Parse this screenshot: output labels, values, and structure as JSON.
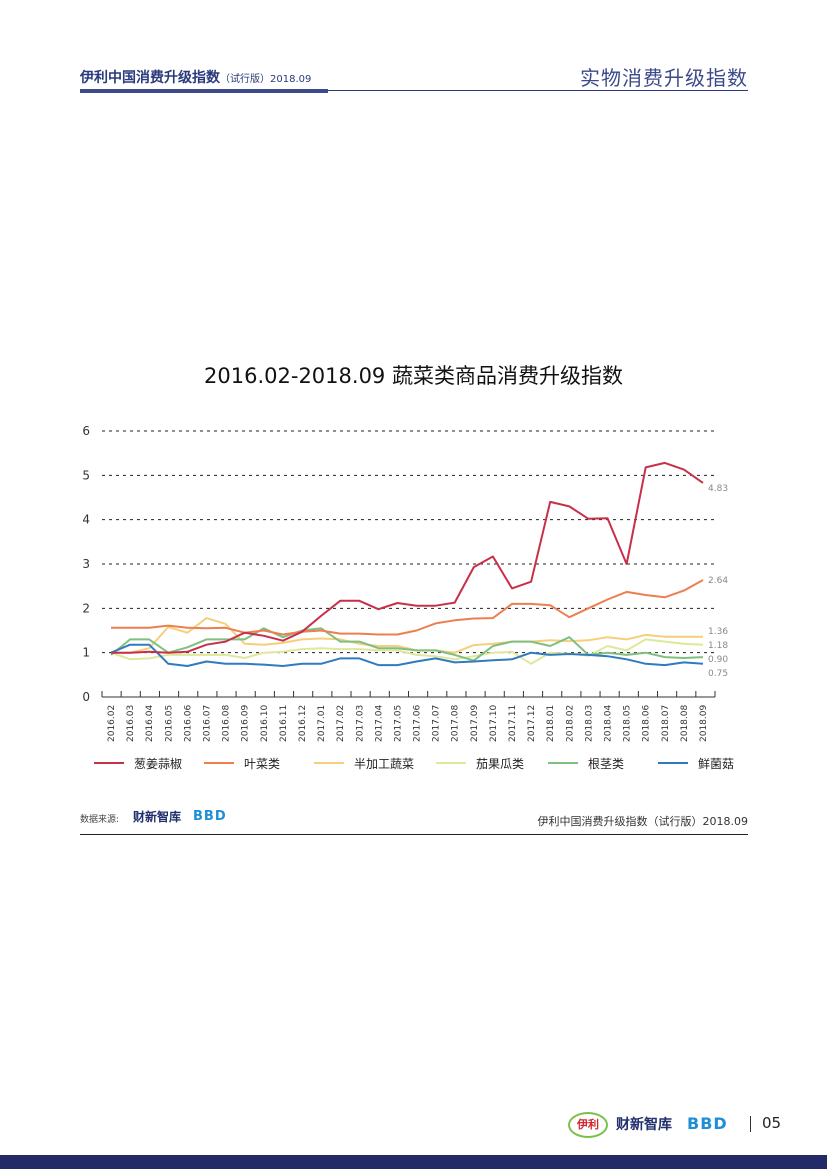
{
  "header": {
    "left_title": "伊利中国消费升级指数",
    "left_sub": "（试行版）2018.09",
    "right_title": "实物消费升级指数"
  },
  "chart_data": {
    "type": "line",
    "title": "2016.02-2018.09 蔬菜类商品消费升级指数",
    "xlabel": "",
    "ylabel": "",
    "ylim": [
      0,
      6
    ],
    "yticks": [
      "0",
      "1",
      "2",
      "3",
      "4",
      "5",
      "6"
    ],
    "grid": true,
    "legend_position": "bottom",
    "categories": [
      "2016.02",
      "2016.03",
      "2016.04",
      "2016.05",
      "2016.06",
      "2016.07",
      "2016.08",
      "2016.09",
      "2016.10",
      "2016.11",
      "2016.12",
      "2017.01",
      "2017.02",
      "2017.03",
      "2017.04",
      "2017.05",
      "2017.06",
      "2017.07",
      "2017.08",
      "2017.09",
      "2017.10",
      "2017.11",
      "2017.12",
      "2018.01",
      "2018.02",
      "2018.03",
      "2018.04",
      "2018.05",
      "2018.06",
      "2018.07",
      "2018.08",
      "2018.09"
    ],
    "series": [
      {
        "name": "葱姜蒜椒",
        "color": "#c8304a",
        "end_label": "4.83",
        "values": [
          1.0,
          1.0,
          1.02,
          1.0,
          1.02,
          1.18,
          1.25,
          1.45,
          1.38,
          1.27,
          1.47,
          1.83,
          2.17,
          2.17,
          1.98,
          2.12,
          2.06,
          2.06,
          2.13,
          2.93,
          3.17,
          2.45,
          2.6,
          4.4,
          4.3,
          4.02,
          4.03,
          3.0,
          5.18,
          5.28,
          5.13,
          4.83
        ]
      },
      {
        "name": "叶菜类",
        "color": "#ec7f4f",
        "end_label": "2.64",
        "values": [
          1.56,
          1.56,
          1.56,
          1.61,
          1.56,
          1.55,
          1.56,
          1.45,
          1.5,
          1.41,
          1.47,
          1.5,
          1.43,
          1.43,
          1.41,
          1.41,
          1.5,
          1.66,
          1.73,
          1.77,
          1.78,
          2.1,
          2.1,
          2.07,
          1.8,
          2.0,
          2.2,
          2.37,
          2.3,
          2.25,
          2.4,
          2.64
        ]
      },
      {
        "name": "半加工蔬菜",
        "color": "#f5cf7a",
        "end_label": "1.36",
        "values": [
          1.0,
          1.0,
          1.1,
          1.58,
          1.45,
          1.78,
          1.65,
          1.2,
          1.18,
          1.22,
          1.3,
          1.32,
          1.3,
          1.2,
          1.15,
          1.15,
          1.05,
          1.05,
          1.0,
          1.17,
          1.2,
          1.25,
          1.25,
          1.28,
          1.26,
          1.28,
          1.35,
          1.3,
          1.4,
          1.36,
          1.36,
          1.36
        ]
      },
      {
        "name": "茄果瓜类",
        "color": "#dfe89a",
        "end_label": "1.18",
        "values": [
          1.0,
          0.85,
          0.87,
          0.95,
          0.95,
          0.95,
          0.95,
          0.88,
          1.0,
          1.02,
          1.08,
          1.1,
          1.08,
          1.08,
          1.05,
          1.05,
          0.95,
          0.92,
          0.85,
          0.92,
          1.0,
          1.02,
          0.75,
          1.0,
          0.98,
          0.93,
          1.15,
          1.05,
          1.3,
          1.25,
          1.2,
          1.18
        ]
      },
      {
        "name": "根茎类",
        "color": "#7fbf7f",
        "end_label": "0.90",
        "values": [
          0.95,
          1.3,
          1.3,
          1.0,
          1.12,
          1.3,
          1.3,
          1.3,
          1.55,
          1.35,
          1.5,
          1.55,
          1.25,
          1.25,
          1.1,
          1.1,
          1.05,
          1.05,
          0.95,
          0.82,
          1.15,
          1.25,
          1.25,
          1.15,
          1.35,
          0.95,
          1.0,
          0.95,
          1.0,
          0.9,
          0.88,
          0.9
        ]
      },
      {
        "name": "鲜菌菇",
        "color": "#2f7bbd",
        "end_label": "0.75",
        "values": [
          1.0,
          1.18,
          1.18,
          0.75,
          0.7,
          0.8,
          0.75,
          0.75,
          0.73,
          0.7,
          0.75,
          0.75,
          0.87,
          0.87,
          0.72,
          0.72,
          0.8,
          0.87,
          0.78,
          0.8,
          0.83,
          0.85,
          1.0,
          0.95,
          0.97,
          0.95,
          0.92,
          0.85,
          0.75,
          0.72,
          0.78,
          0.75
        ]
      }
    ]
  },
  "footer": {
    "source_label": "数据来源:",
    "source_logo_1": "财新智库",
    "source_logo_2": "BBD",
    "right_text": "伊利中国消费升级指数（试行版）2018.09",
    "logo_yili": "伊利",
    "logo_caixin": "财新智库",
    "logo_bbd": "BBD",
    "page_number": "05"
  }
}
